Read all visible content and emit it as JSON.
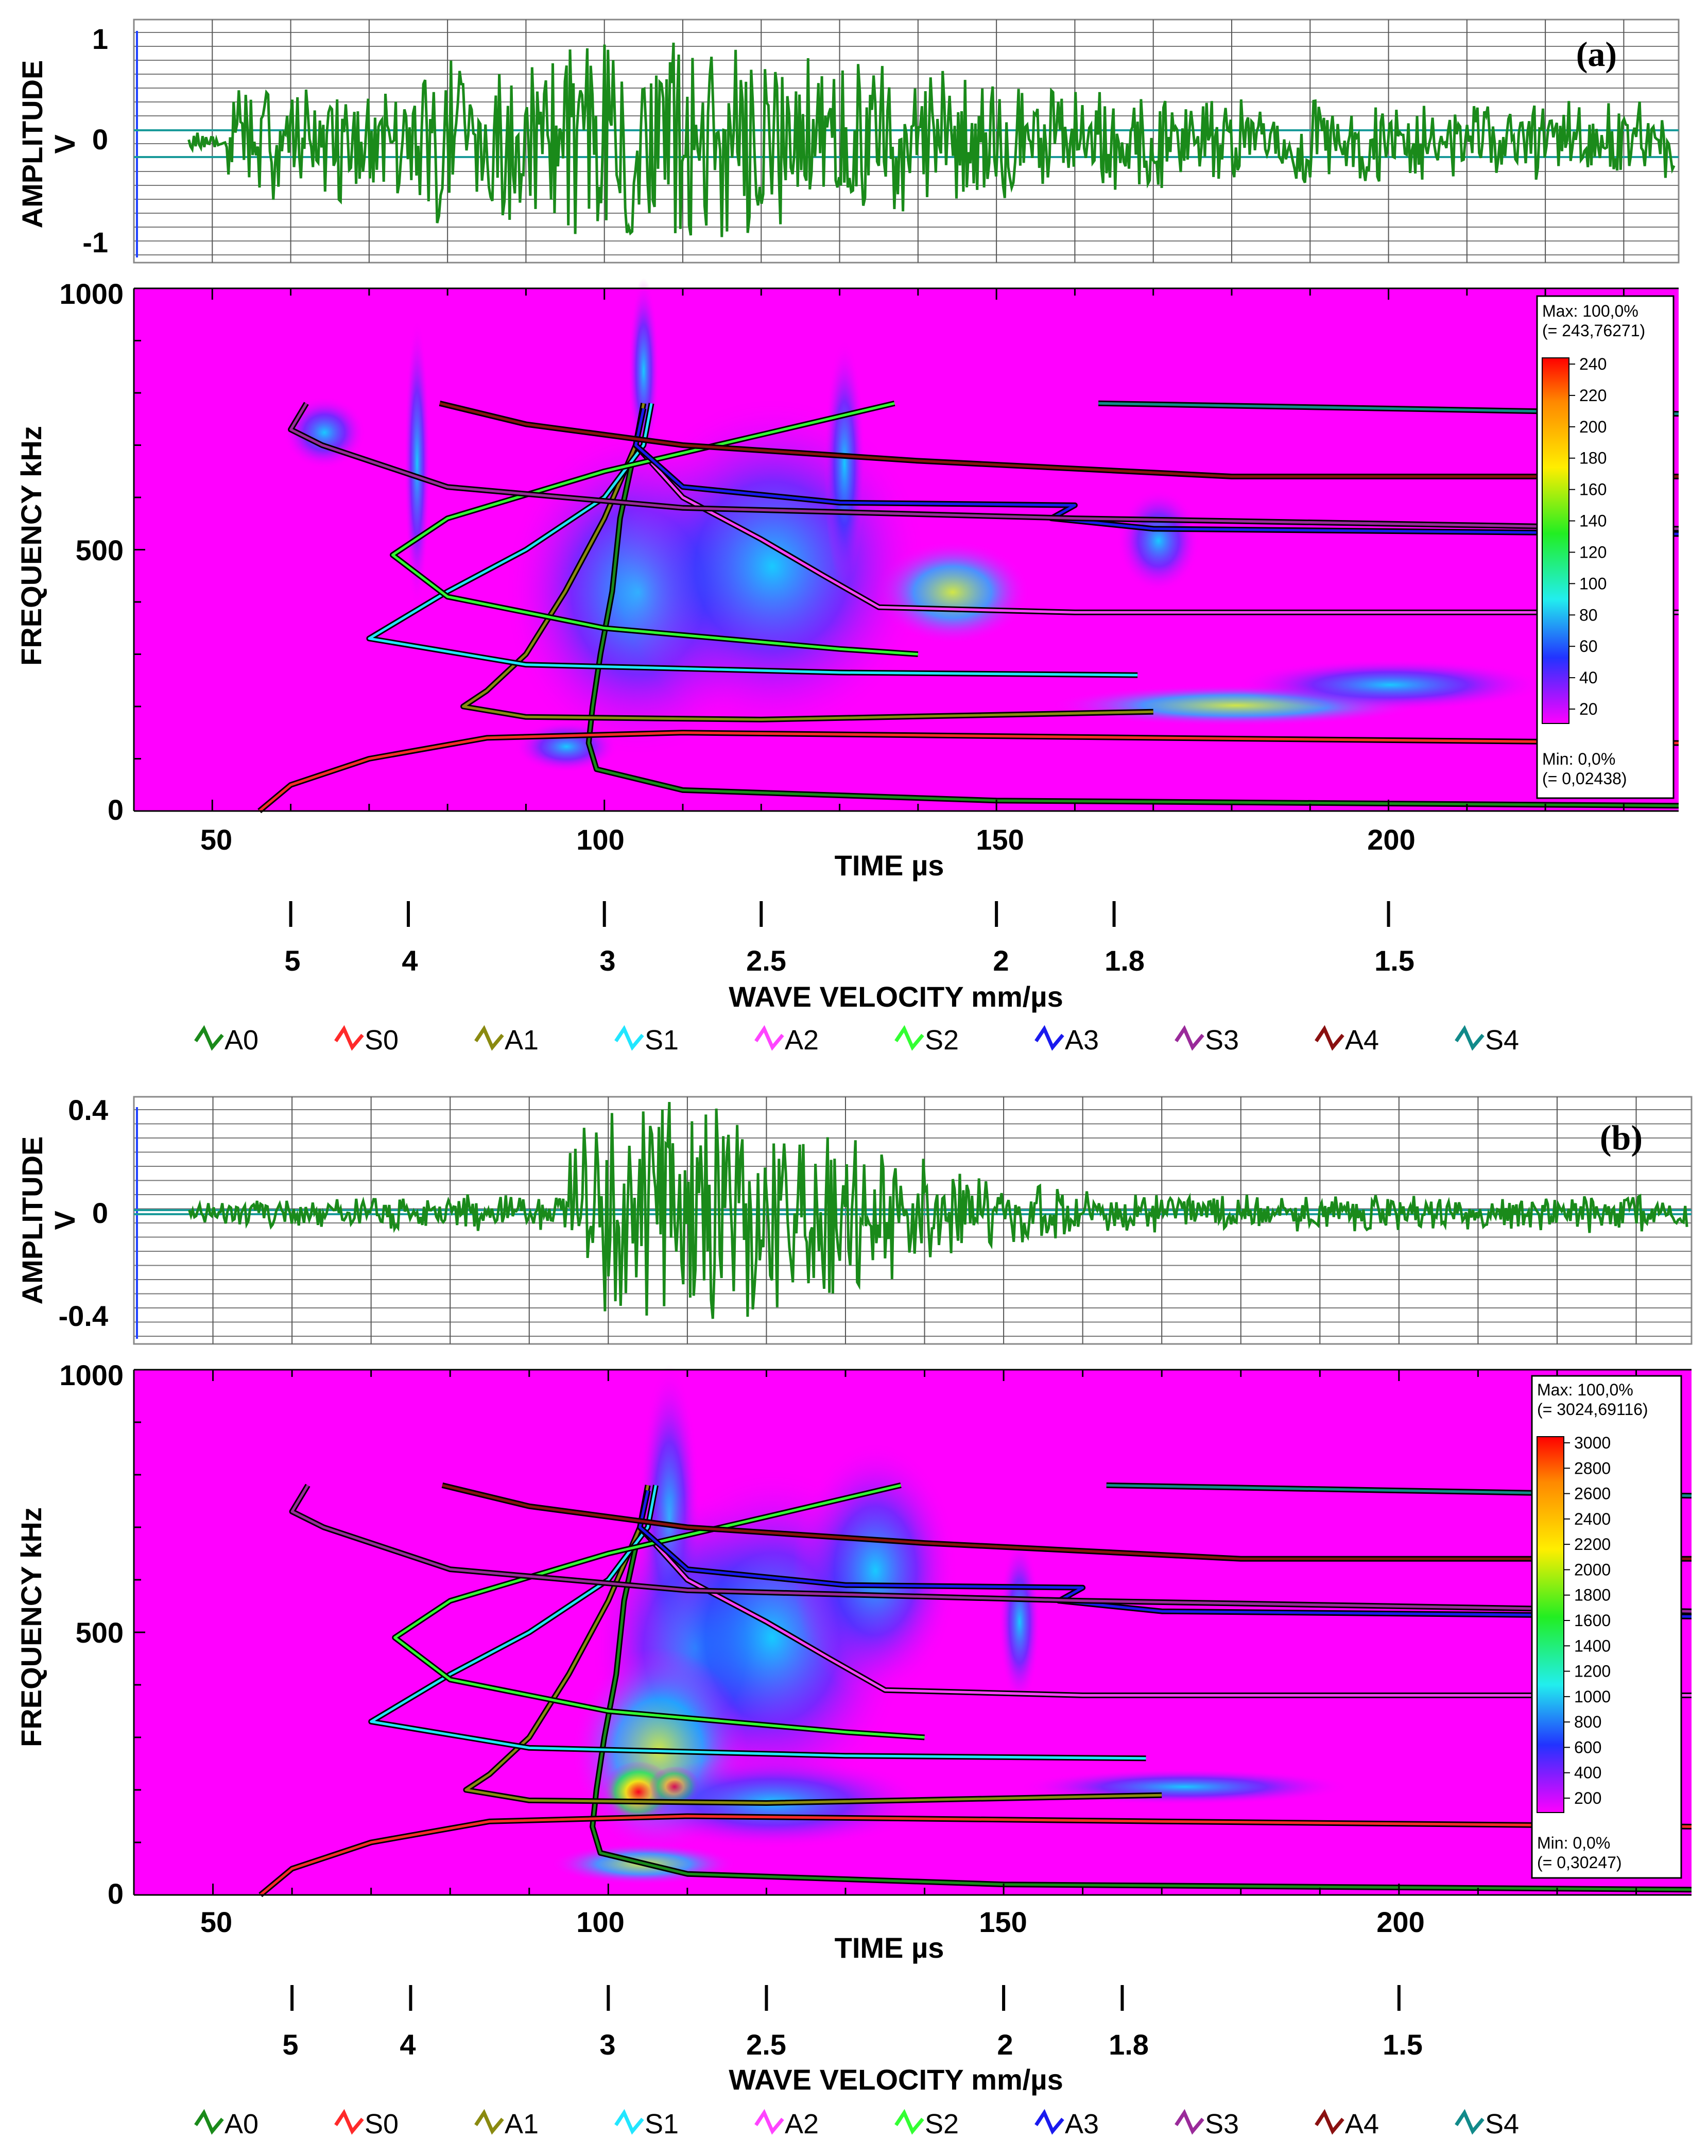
{
  "panels": [
    {
      "label": "(a)",
      "amplitude": {
        "ylabel_line1": "AMPLITUDE",
        "ylabel_line2": "V",
        "ticks": [
          "1",
          "0",
          "-1"
        ],
        "tick_values": [
          1,
          0,
          -1
        ],
        "ylim": [
          -1.1,
          1.1
        ],
        "seed": 17,
        "envelope_peak_us": 108,
        "envelope_amp": 1.0
      },
      "spectrogram": {
        "ylabel": "FREQUENCY  kHz",
        "yticks": [
          "1000",
          "500",
          "0"
        ],
        "colorbar": {
          "max_line1": "Max: 100,0%",
          "max_line2": "(= 243,76271)",
          "min_line1": "Min: 0,0%",
          "min_line2": "(= 0,02438)",
          "ticks": [
            "240",
            "220",
            "200",
            "180",
            "160",
            "140",
            "120",
            "100",
            "80",
            "60",
            "40",
            "20"
          ]
        }
      },
      "time_axis": {
        "label": "TIME  µs",
        "ticks": [
          "50",
          "100",
          "150",
          "200"
        ]
      },
      "velocity_axis": {
        "label": "WAVE VELOCITY  mm/µs",
        "ticks": [
          "5",
          "4",
          "3",
          "2.5",
          "2",
          "1.8",
          "1.5"
        ]
      }
    },
    {
      "label": "(b)",
      "amplitude": {
        "ylabel_line1": "AMPLITUDE",
        "ylabel_line2": "V",
        "ticks": [
          "0.4",
          "0",
          "-0.4"
        ],
        "tick_values": [
          0.4,
          0,
          -0.4
        ],
        "ylim": [
          -0.5,
          0.45
        ],
        "seed": 41,
        "envelope_peak_us": 112,
        "envelope_amp": 0.36
      },
      "spectrogram": {
        "ylabel": "FREQUENCY  kHz",
        "yticks": [
          "1000",
          "500",
          "0"
        ],
        "colorbar": {
          "max_line1": "Max: 100,0%",
          "max_line2": "(= 3024,69116)",
          "min_line1": "Min: 0,0%",
          "min_line2": "(= 0,30247)",
          "ticks": [
            "3000",
            "2800",
            "2600",
            "2400",
            "2200",
            "2000",
            "1800",
            "1600",
            "1400",
            "1200",
            "1000",
            "800",
            "600",
            "400",
            "200"
          ]
        }
      },
      "time_axis": {
        "label": "TIME  µs",
        "ticks": [
          "50",
          "100",
          "150",
          "200"
        ]
      },
      "velocity_axis": {
        "label": "WAVE VELOCITY  mm/µs",
        "ticks": [
          "5",
          "4",
          "3",
          "2.5",
          "2",
          "1.8",
          "1.5"
        ]
      }
    }
  ],
  "legend": [
    {
      "label": "A0",
      "color": "#1a8a1a"
    },
    {
      "label": "S0",
      "color": "#ff2a2a"
    },
    {
      "label": "A1",
      "color": "#8a8a10"
    },
    {
      "label": "S1",
      "color": "#22e6ff"
    },
    {
      "label": "A2",
      "color": "#ff44ff"
    },
    {
      "label": "S2",
      "color": "#33ff33"
    },
    {
      "label": "A3",
      "color": "#1a1aee"
    },
    {
      "label": "S3",
      "color": "#9a2a9a"
    },
    {
      "label": "A4",
      "color": "#8a1010"
    },
    {
      "label": "S4",
      "color": "#118a8a"
    }
  ],
  "chart_data": [
    {
      "type": "line",
      "title": "(a)",
      "xlabel": "TIME  µs",
      "ylabel": "AMPLITUDE V",
      "xlim": [
        40,
        237
      ],
      "ylim": [
        -1.1,
        1.1
      ],
      "description_series": [
        {
          "name": "waveform (a)",
          "values": "oscillating signal, peak ~1 V near 105 µs, min ~-1.1 V near 118 µs"
        }
      ]
    },
    {
      "type": "heatmap",
      "title": "(a) spectrogram",
      "xlabel": "TIME  µs",
      "ylabel": "FREQUENCY  kHz",
      "xlim": [
        40,
        237
      ],
      "ylim": [
        0,
        1000
      ],
      "colorbar_range": [
        0,
        243.76271
      ],
      "velocity_ticks": [
        {
          "label": "5",
          "time_us": 60
        },
        {
          "label": "4",
          "time_us": 75
        },
        {
          "label": "3",
          "time_us": 100
        },
        {
          "label": "2.5",
          "time_us": 120
        },
        {
          "label": "2",
          "time_us": 150
        },
        {
          "label": "1.8",
          "time_us": 165
        },
        {
          "label": "1.5",
          "time_us": 200
        }
      ]
    },
    {
      "type": "line",
      "title": "(b)",
      "xlabel": "TIME  µs",
      "ylabel": "AMPLITUDE V",
      "xlim": [
        40,
        237
      ],
      "ylim": [
        -0.5,
        0.45
      ],
      "description_series": [
        {
          "name": "waveform (b)",
          "values": "signal grows after 95 µs, peak ~0.4 V at 105 µs, min ~-0.47 V at 106 µs"
        }
      ]
    },
    {
      "type": "heatmap",
      "title": "(b) spectrogram",
      "xlabel": "TIME  µs",
      "ylabel": "FREQUENCY  kHz",
      "xlim": [
        40,
        237
      ],
      "ylim": [
        0,
        1000
      ],
      "colorbar_range": [
        0,
        3024.69116
      ],
      "velocity_ticks": [
        {
          "label": "5",
          "time_us": 60
        },
        {
          "label": "4",
          "time_us": 75
        },
        {
          "label": "3",
          "time_us": 100
        },
        {
          "label": "2.5",
          "time_us": 120
        },
        {
          "label": "2",
          "time_us": 150
        },
        {
          "label": "1.8",
          "time_us": 165
        },
        {
          "label": "1.5",
          "time_us": 200
        }
      ]
    }
  ],
  "dispersion_curves": [
    {
      "mode": "A0",
      "color": "#1a8a1a",
      "points": [
        [
          105,
          780
        ],
        [
          104,
          700
        ],
        [
          102,
          560
        ],
        [
          101,
          420
        ],
        [
          99.5,
          300
        ],
        [
          98.5,
          200
        ],
        [
          98,
          130
        ],
        [
          99,
          80
        ],
        [
          110,
          40
        ],
        [
          150,
          20
        ],
        [
          237,
          10
        ]
      ]
    },
    {
      "mode": "S0",
      "color": "#ff2a2a",
      "points": [
        [
          56,
          0
        ],
        [
          60,
          50
        ],
        [
          70,
          100
        ],
        [
          85,
          140
        ],
        [
          110,
          150
        ],
        [
          170,
          140
        ],
        [
          237,
          130
        ]
      ]
    },
    {
      "mode": "A1",
      "color": "#8a8a10",
      "points": [
        [
          105,
          780
        ],
        [
          104,
          700
        ],
        [
          100,
          560
        ],
        [
          95,
          420
        ],
        [
          90,
          300
        ],
        [
          85,
          230
        ],
        [
          82,
          200
        ],
        [
          90,
          180
        ],
        [
          120,
          175
        ],
        [
          170,
          190
        ]
      ]
    },
    {
      "mode": "S1",
      "color": "#22e6ff",
      "points": [
        [
          106,
          780
        ],
        [
          105,
          700
        ],
        [
          100,
          600
        ],
        [
          90,
          500
        ],
        [
          80,
          420
        ],
        [
          70,
          330
        ],
        [
          90,
          280
        ],
        [
          130,
          265
        ],
        [
          168,
          260
        ]
      ]
    },
    {
      "mode": "A2",
      "color": "#ff44ff",
      "points": [
        [
          105,
          770
        ],
        [
          104,
          700
        ],
        [
          110,
          600
        ],
        [
          120,
          520
        ],
        [
          128,
          450
        ],
        [
          135,
          390
        ],
        [
          160,
          380
        ],
        [
          237,
          380
        ]
      ]
    },
    {
      "mode": "S2",
      "color": "#33ff33",
      "points": [
        [
          137,
          780
        ],
        [
          120,
          720
        ],
        [
          100,
          650
        ],
        [
          80,
          560
        ],
        [
          73,
          490
        ],
        [
          80,
          410
        ],
        [
          100,
          350
        ],
        [
          130,
          310
        ],
        [
          140,
          300
        ]
      ]
    },
    {
      "mode": "A3",
      "color": "#1a1aee",
      "points": [
        [
          105,
          770
        ],
        [
          104,
          700
        ],
        [
          110,
          620
        ],
        [
          130,
          590
        ],
        [
          160,
          585
        ],
        [
          157,
          560
        ],
        [
          170,
          540
        ],
        [
          237,
          530
        ]
      ]
    },
    {
      "mode": "S3",
      "color": "#9a2a9a",
      "points": [
        [
          62,
          780
        ],
        [
          60,
          730
        ],
        [
          64,
          700
        ],
        [
          80,
          620
        ],
        [
          110,
          580
        ],
        [
          160,
          560
        ],
        [
          237,
          540
        ]
      ]
    },
    {
      "mode": "A4",
      "color": "#8a1010",
      "points": [
        [
          79,
          780
        ],
        [
          90,
          740
        ],
        [
          110,
          700
        ],
        [
          140,
          670
        ],
        [
          180,
          640
        ],
        [
          237,
          640
        ]
      ]
    },
    {
      "mode": "S4",
      "color": "#118a8a",
      "points": [
        [
          163,
          780
        ],
        [
          200,
          770
        ],
        [
          237,
          760
        ]
      ]
    }
  ]
}
